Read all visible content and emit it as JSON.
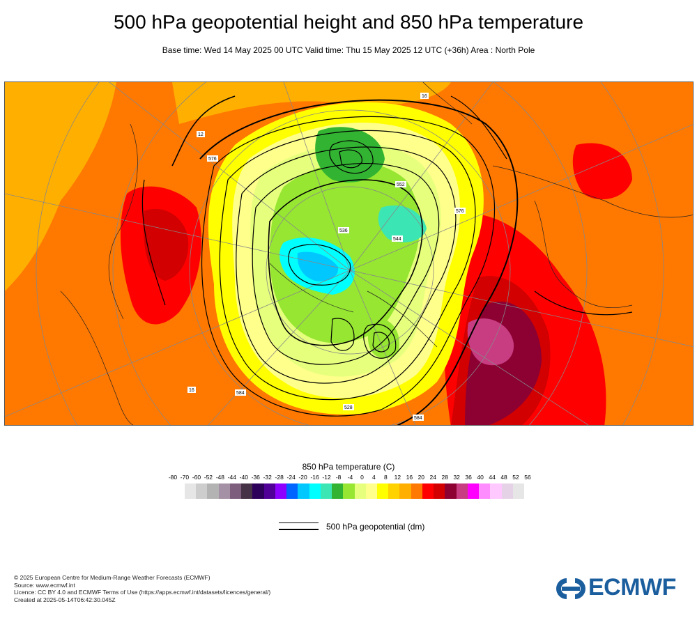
{
  "header": {
    "title": "500 hPa geopotential height and 850 hPa temperature",
    "subtitle": "Base time: Wed 14 May 2025 00 UTC Valid time: Thu 15 May 2025 12 UTC (+36h) Area : North Pole"
  },
  "map": {
    "projection": "polar stereographic",
    "area": "North Pole",
    "contour_labels": [
      "552",
      "544",
      "536",
      "576",
      "584",
      "528",
      "16",
      "12",
      "16",
      "576",
      "584"
    ]
  },
  "legend": {
    "temperature_title": "850 hPa temperature (C)",
    "ticks": [
      "-80",
      "-70",
      "-60",
      "-52",
      "-48",
      "-44",
      "-40",
      "-36",
      "-32",
      "-28",
      "-24",
      "-20",
      "-16",
      "-12",
      "-8",
      "-4",
      "0",
      "4",
      "8",
      "12",
      "16",
      "20",
      "24",
      "28",
      "32",
      "36",
      "40",
      "44",
      "48",
      "52",
      "56"
    ],
    "colors": [
      "#e6e6e6",
      "#cdcdcd",
      "#b3b3b3",
      "#a591a5",
      "#7d5f7d",
      "#463246",
      "#2d005a",
      "#500096",
      "#8c00ff",
      "#0064ff",
      "#00c8ff",
      "#00ffff",
      "#3ce6b4",
      "#32b432",
      "#96e632",
      "#e6ff7d",
      "#ffff8c",
      "#ffff00",
      "#ffd200",
      "#ffaf00",
      "#ff7800",
      "#ff0000",
      "#d20000",
      "#8c0032",
      "#c83c82",
      "#ff00ff",
      "#ff8cff",
      "#ffc8ff",
      "#e6d2e6",
      "#e6e6e6"
    ],
    "geopotential_label": "500 hPa geopotential (dm)"
  },
  "footer": {
    "credit_lines": [
      "© 2025 European Centre for Medium-Range Weather Forecasts (ECMWF)",
      "Source: www.ecmwf.int",
      "Licence: CC BY 4.0 and ECMWF Terms of Use (https://apps.ecmwf.int/datasets/licences/general/)",
      "Created at 2025-05-14T06:42:30.045Z"
    ],
    "logo_text": "ECMWF",
    "logo_color": "#1b5e9e"
  }
}
